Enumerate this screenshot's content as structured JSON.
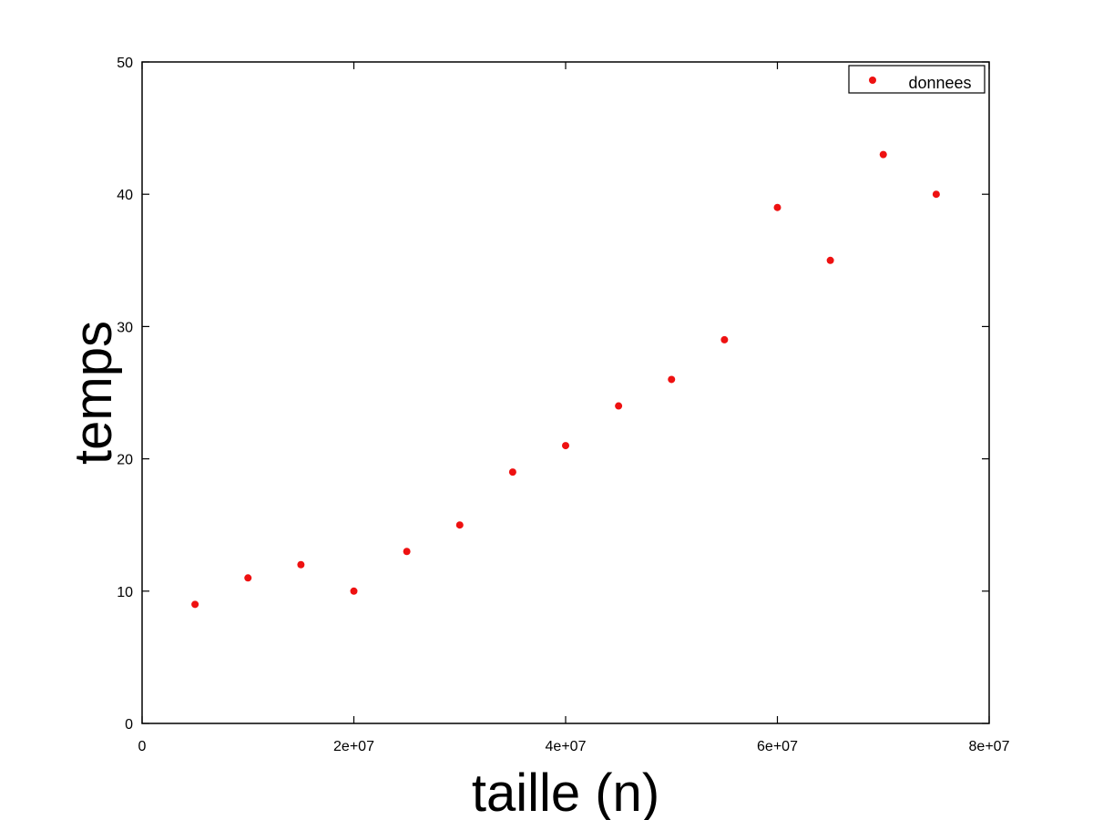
{
  "chart_data": {
    "type": "scatter",
    "title": "",
    "xlabel": "taille (n)",
    "ylabel": "temps",
    "xlim": [
      0,
      80000000
    ],
    "ylim": [
      0,
      50
    ],
    "x_ticks": [
      0,
      20000000,
      40000000,
      60000000,
      80000000
    ],
    "x_tick_labels": [
      "0",
      "2e+07",
      "4e+07",
      "6e+07",
      "8e+07"
    ],
    "y_ticks": [
      0,
      10,
      20,
      30,
      40,
      50
    ],
    "y_tick_labels": [
      "0",
      "10",
      "20",
      "30",
      "40",
      "50"
    ],
    "grid": false,
    "legend_position": "top-right",
    "series": [
      {
        "name": "donnees",
        "color": "#ee1111",
        "marker": "circle",
        "x": [
          5000000,
          10000000,
          15000000,
          20000000,
          25000000,
          30000000,
          35000000,
          40000000,
          45000000,
          50000000,
          55000000,
          60000000,
          65000000,
          70000000,
          75000000
        ],
        "y": [
          9,
          11,
          12,
          10,
          13,
          15,
          19,
          21,
          24,
          26,
          29,
          39,
          35,
          43,
          40
        ]
      }
    ]
  }
}
